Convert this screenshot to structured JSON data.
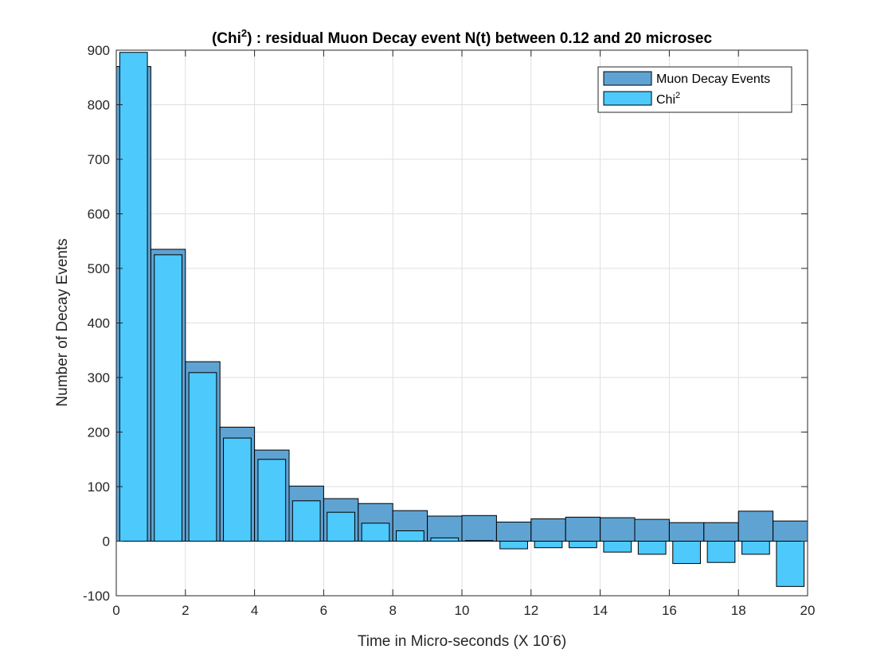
{
  "chart_data": {
    "type": "bar",
    "title_prefix": "(Chi",
    "title_sup": "2",
    "title_suffix": ") : residual Muon Decay event N(t) between 0.12 and 20 microsec",
    "xlabel_prefix": "Time in Micro-seconds (X 10",
    "xlabel_sup": "-",
    "xlabel_suffix": "6)",
    "ylabel": "Number of Decay Events",
    "xlim": [
      0,
      20
    ],
    "ylim": [
      -100,
      900
    ],
    "xticks": [
      0,
      2,
      4,
      6,
      8,
      10,
      12,
      14,
      16,
      18,
      20
    ],
    "yticks": [
      -100,
      0,
      100,
      200,
      300,
      400,
      500,
      600,
      700,
      800,
      900
    ],
    "grid": true,
    "legend_position": "top-right",
    "x": [
      0.5,
      1.5,
      2.5,
      3.5,
      4.5,
      5.5,
      6.5,
      7.5,
      8.5,
      9.5,
      10.5,
      11.5,
      12.5,
      13.5,
      14.5,
      15.5,
      16.5,
      17.5,
      18.5,
      19.5
    ],
    "series": [
      {
        "name": "Muon Decay Events",
        "legend_sup": "",
        "color": "#5fa3d3",
        "width": 1.0,
        "values": [
          870,
          535,
          329,
          209,
          167,
          101,
          78,
          69,
          56,
          46,
          47,
          35,
          41,
          44,
          43,
          40,
          34,
          34,
          55,
          37
        ]
      },
      {
        "name": "Chi",
        "legend_sup": "2",
        "color": "#4dc9fc",
        "width": 0.8,
        "values": [
          896,
          525,
          309,
          189,
          150,
          74,
          53,
          33,
          19,
          6,
          1,
          -14,
          -12,
          -12,
          -20,
          -24,
          -41,
          -39,
          -24,
          -83
        ]
      }
    ]
  }
}
